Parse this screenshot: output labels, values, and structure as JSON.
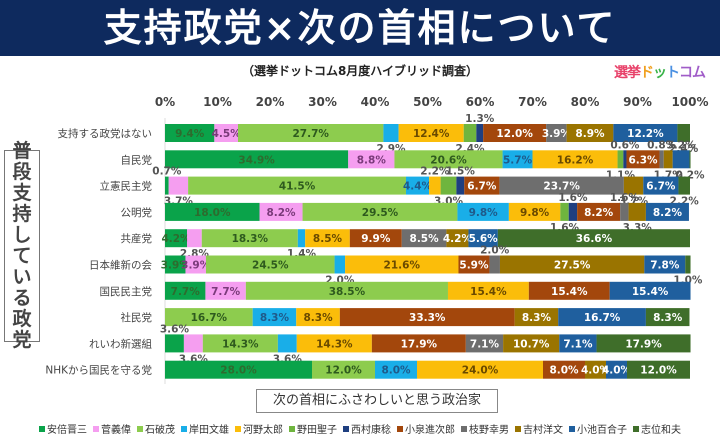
{
  "header": {
    "title": "支持政党×次の首相について",
    "subtitle": "（選挙ドットコム8月度ハイブリッド調査）",
    "logo": [
      "選挙",
      "ド",
      "ッ",
      "ト",
      "コム"
    ]
  },
  "chart_data": {
    "type": "bar",
    "orientation": "horizontal",
    "stacked": true,
    "title": "支持政党×次の首相について",
    "subtitle": "（選挙ドットコム8月度ハイブリッド調査）",
    "ylabel": "普段支持している政党",
    "xlabel": "次の首相にふさわしいと思う政治家",
    "xlim": [
      0,
      100
    ],
    "x_ticks": [
      "0%",
      "10%",
      "20%",
      "30%",
      "40%",
      "50%",
      "60%",
      "70%",
      "80%",
      "90%",
      "100%"
    ],
    "legend_position": "bottom",
    "categories": [
      "支持する政党はない",
      "自民党",
      "立憲民主党",
      "公明党",
      "共産党",
      "日本維新の会",
      "国民民主党",
      "社民党",
      "れいわ新選組",
      "NHKから国民を守る党"
    ],
    "series": [
      {
        "name": "安倍晋三",
        "color": "#0aa34a",
        "text_color": "#2e6b2e",
        "values": [
          9.4,
          34.9,
          0.7,
          18.0,
          4.2,
          3.9,
          7.7,
          0,
          3.6,
          28.0
        ]
      },
      {
        "name": "菅義偉",
        "color": "#f59ef0",
        "text_color": "#7a3a7a",
        "values": [
          4.5,
          8.8,
          3.7,
          8.2,
          2.8,
          3.9,
          7.7,
          0,
          3.6,
          0
        ]
      },
      {
        "name": "石破茂",
        "color": "#8dcc4e",
        "text_color": "#2e5a1e",
        "values": [
          27.7,
          20.6,
          41.5,
          29.5,
          18.3,
          24.5,
          38.5,
          16.7,
          14.3,
          12.0
        ]
      },
      {
        "name": "岸田文雄",
        "color": "#19aee8",
        "text_color": "#1f5a8a",
        "values": [
          2.9,
          5.7,
          4.4,
          9.8,
          1.4,
          2.0,
          0,
          8.3,
          3.6,
          8.0
        ]
      },
      {
        "name": "河野太郎",
        "color": "#fbbd0a",
        "text_color": "#6a4a00",
        "values": [
          12.4,
          16.2,
          2.2,
          9.8,
          8.5,
          21.6,
          15.4,
          8.3,
          14.3,
          24.0
        ]
      },
      {
        "name": "野田聖子",
        "color": "#6fb53e",
        "text_color": "#444444",
        "values": [
          2.4,
          1.1,
          3.0,
          1.6,
          0,
          0,
          0,
          0,
          0,
          0
        ]
      },
      {
        "name": "西村康稔",
        "color": "#1f3f80",
        "text_color": "#444444",
        "values": [
          1.3,
          0.6,
          1.5,
          1.6,
          0,
          0,
          0,
          0,
          0,
          0
        ]
      },
      {
        "name": "小泉進次郎",
        "color": "#a3470c",
        "text_color": "#ffffff",
        "values": [
          12.0,
          6.3,
          6.7,
          8.2,
          9.9,
          5.9,
          15.4,
          33.3,
          17.9,
          8.0
        ]
      },
      {
        "name": "枝野幸男",
        "color": "#6e6e6e",
        "text_color": "#ffffff",
        "values": [
          3.9,
          0.8,
          23.7,
          1.6,
          8.5,
          2.0,
          0,
          0,
          7.1,
          0
        ]
      },
      {
        "name": "吉村洋文",
        "color": "#9a7400",
        "text_color": "#ffffff",
        "values": [
          8.9,
          1.7,
          3.7,
          3.3,
          4.2,
          27.5,
          0,
          8.3,
          10.7,
          4.0
        ]
      },
      {
        "name": "小池百合子",
        "color": "#1f5f9e",
        "text_color": "#ffffff",
        "values": [
          12.2,
          3.2,
          6.7,
          8.2,
          5.6,
          7.8,
          15.4,
          16.7,
          7.1,
          4.0
        ]
      },
      {
        "name": "志位和夫",
        "color": "#3f6e2a",
        "text_color": "#ffffff",
        "values": [
          2.4,
          0.2,
          2.2,
          0,
          36.6,
          1.0,
          0,
          8.3,
          17.9,
          12.0
        ]
      }
    ]
  }
}
